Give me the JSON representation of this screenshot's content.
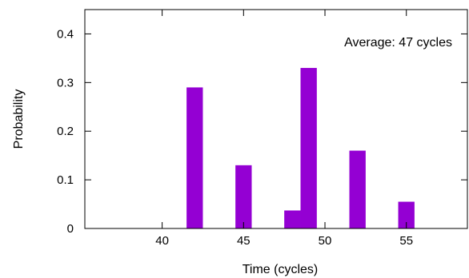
{
  "chart_data": {
    "type": "bar",
    "title": "",
    "xlabel": "Time (cycles)",
    "ylabel": "Probability",
    "annotation": "Average: 47 cycles",
    "xlim": [
      35.25,
      58.75
    ],
    "ylim": [
      0,
      0.45
    ],
    "x_ticks": [
      40,
      45,
      50,
      55
    ],
    "y_ticks": [
      0,
      0.1,
      0.2,
      0.3,
      0.4
    ],
    "y_tick_labels": [
      "0",
      "0.1",
      "0.2",
      "0.3",
      "0.4"
    ],
    "bar_width": 1,
    "bar_color": "#9400d3",
    "grid": false,
    "legend": "none",
    "x": [
      42,
      45,
      48,
      49,
      52,
      55
    ],
    "values": [
      0.29,
      0.13,
      0.037,
      0.33,
      0.16,
      0.055
    ]
  }
}
